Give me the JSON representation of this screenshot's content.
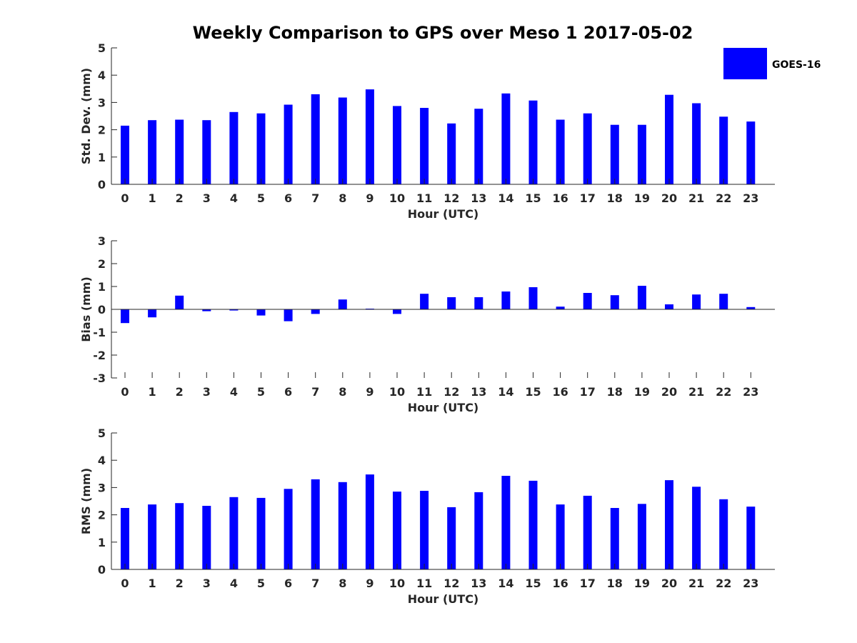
{
  "chart_data": {
    "type": "bar",
    "title": "Weekly Comparison to GPS over Meso 1 2017-05-02",
    "legend": {
      "label": "GOES-16",
      "color": "#0000ff",
      "placement": "top-right"
    },
    "panels": [
      {
        "name": "std-dev",
        "ylabel": "Std. Dev. (mm)",
        "xlabel": "Hour (UTC)",
        "ylim": [
          0,
          5
        ],
        "yticks": [
          "0",
          "1",
          "2",
          "3",
          "4",
          "5"
        ],
        "categories": [
          "0",
          "1",
          "2",
          "3",
          "4",
          "5",
          "6",
          "7",
          "8",
          "9",
          "10",
          "11",
          "12",
          "13",
          "14",
          "15",
          "16",
          "17",
          "18",
          "19",
          "20",
          "21",
          "22",
          "23"
        ],
        "series": [
          {
            "name": "GOES-16",
            "values": [
              2.15,
              2.35,
              2.37,
              2.35,
              2.65,
              2.6,
              2.92,
              3.3,
              3.18,
              3.48,
              2.87,
              2.8,
              2.23,
              2.77,
              3.33,
              3.07,
              2.37,
              2.6,
              2.18,
              2.18,
              3.28,
              2.97,
              2.48,
              2.3
            ]
          }
        ]
      },
      {
        "name": "bias",
        "ylabel": "Bias (mm)",
        "xlabel": "Hour (UTC)",
        "ylim": [
          -3,
          3
        ],
        "yticks": [
          "-3",
          "-2",
          "-1",
          "0",
          "1",
          "2",
          "3"
        ],
        "categories": [
          "0",
          "1",
          "2",
          "3",
          "4",
          "5",
          "6",
          "7",
          "8",
          "9",
          "10",
          "11",
          "12",
          "13",
          "14",
          "15",
          "16",
          "17",
          "18",
          "19",
          "20",
          "21",
          "22",
          "23"
        ],
        "series": [
          {
            "name": "GOES-16",
            "values": [
              -0.6,
              -0.35,
              0.6,
              -0.08,
              -0.05,
              -0.27,
              -0.52,
              -0.2,
              0.43,
              0.03,
              -0.2,
              0.68,
              0.53,
              0.53,
              0.78,
              0.97,
              0.12,
              0.72,
              0.62,
              1.03,
              0.22,
              0.65,
              0.68,
              0.1
            ]
          }
        ]
      },
      {
        "name": "rms",
        "ylabel": "RMS (mm)",
        "xlabel": "Hour (UTC)",
        "ylim": [
          0,
          5
        ],
        "yticks": [
          "0",
          "1",
          "2",
          "3",
          "4",
          "5"
        ],
        "categories": [
          "0",
          "1",
          "2",
          "3",
          "4",
          "5",
          "6",
          "7",
          "8",
          "9",
          "10",
          "11",
          "12",
          "13",
          "14",
          "15",
          "16",
          "17",
          "18",
          "19",
          "20",
          "21",
          "22",
          "23"
        ],
        "series": [
          {
            "name": "GOES-16",
            "values": [
              2.25,
              2.38,
              2.43,
              2.33,
              2.65,
              2.62,
              2.95,
              3.3,
              3.2,
              3.48,
              2.85,
              2.88,
              2.28,
              2.83,
              3.43,
              3.25,
              2.38,
              2.7,
              2.25,
              2.4,
              3.27,
              3.03,
              2.57,
              2.3
            ]
          }
        ]
      }
    ]
  }
}
